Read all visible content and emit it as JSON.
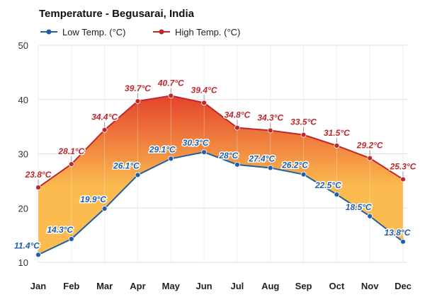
{
  "chart_data": {
    "type": "line",
    "title": "Temperature - Begusarai, India",
    "xlabel": "",
    "ylabel": "",
    "ylim": [
      10,
      50
    ],
    "yticks": [
      10,
      20,
      30,
      40,
      50
    ],
    "grid": true,
    "legend": "top-left",
    "categories": [
      "Jan",
      "Feb",
      "Mar",
      "Apr",
      "May",
      "Jun",
      "Jul",
      "Aug",
      "Sep",
      "Oct",
      "Nov",
      "Dec"
    ],
    "series": [
      {
        "name": "Low Temp. (°C)",
        "color": "#1f5fa8",
        "values": [
          11.4,
          14.3,
          19.9,
          26.1,
          29.1,
          30.3,
          28,
          27.4,
          26.2,
          22.5,
          18.5,
          13.8
        ],
        "labels": [
          "11.4°C",
          "14.3°C",
          "19.9°C",
          "26.1°C",
          "29.1°C",
          "30.3°C",
          "28°C",
          "27.4°C",
          "26.2°C",
          "22.5°C",
          "18.5°C",
          "13.8°C"
        ]
      },
      {
        "name": "High Temp. (°C)",
        "color": "#c0272d",
        "values": [
          23.8,
          28.1,
          34.4,
          39.7,
          40.7,
          39.4,
          34.8,
          34.3,
          33.5,
          31.5,
          29.2,
          25.3
        ],
        "labels": [
          "23.8°C",
          "28.1°C",
          "34.4°C",
          "39.7°C",
          "40.7°C",
          "39.4°C",
          "34.8°C",
          "34.3°C",
          "33.5°C",
          "31.5°C",
          "29.2°C",
          "25.3°C"
        ]
      }
    ],
    "fill_colors": {
      "warm_low": "#fbb540",
      "warm_high": "#e2381c"
    }
  }
}
